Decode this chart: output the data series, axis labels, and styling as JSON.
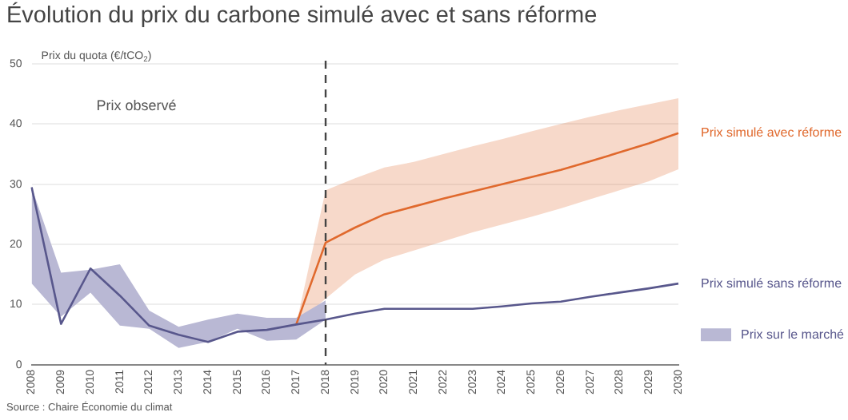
{
  "chart_data": {
    "type": "line",
    "title": "Évolution du prix du carbone simulé avec et sans réforme",
    "ylabel": "Prix du quota (€/tCO$_{2}$)",
    "categories": [
      "2008",
      "2009",
      "2010",
      "2011",
      "2012",
      "2013",
      "2014",
      "2015",
      "2016",
      "2017",
      "2018",
      "2019",
      "2020",
      "2021",
      "2022",
      "2023",
      "2024",
      "2025",
      "2026",
      "2027",
      "2028",
      "2029",
      "2030"
    ],
    "series": [
      {
        "type": "area",
        "name": "Prix sur le marché",
        "color": "#b9b8d4",
        "values": [
          null,
          null,
          null,
          null,
          null,
          null,
          null,
          null,
          null,
          null,
          null,
          null,
          null,
          null,
          null,
          null,
          null,
          null,
          null,
          null,
          null,
          null,
          null
        ],
        "lower": [
          13.5,
          8,
          12,
          6.5,
          6,
          2.8,
          3.8,
          6,
          4,
          4.2,
          7.5,
          null,
          null,
          null,
          null,
          null,
          null,
          null,
          null,
          null,
          null,
          null,
          null
        ],
        "upper": [
          29.5,
          15.3,
          15.8,
          16.7,
          9,
          6.3,
          7.5,
          8.5,
          7.8,
          7.8,
          10.7,
          null,
          null,
          null,
          null,
          null,
          null,
          null,
          null,
          null,
          null,
          null,
          null
        ]
      },
      {
        "name": "Prix simulé sans réforme",
        "color": "#58578c",
        "values": [
          29.5,
          6.8,
          16,
          11.5,
          6.5,
          5,
          3.8,
          5.5,
          5.8,
          6.7,
          7.5,
          8.5,
          9.3,
          9.3,
          9.3,
          9.3,
          9.7,
          10.2,
          10.5,
          11.3,
          12,
          12.7,
          13.5
        ]
      },
      {
        "name": "Prix simulé avec réforme",
        "color": "#e0692d",
        "values": [
          null,
          null,
          null,
          null,
          null,
          null,
          null,
          null,
          null,
          6.7,
          20.3,
          22.8,
          25,
          26.3,
          27.6,
          28.8,
          30,
          31.2,
          32.4,
          33.8,
          35.3,
          36.8,
          38.5
        ],
        "lower": [
          null,
          null,
          null,
          null,
          null,
          null,
          null,
          null,
          null,
          6.7,
          11,
          15,
          17.5,
          19,
          20.5,
          22,
          23.3,
          24.6,
          26,
          27.5,
          29,
          30.5,
          32.5
        ],
        "upper": [
          null,
          null,
          null,
          null,
          null,
          null,
          null,
          null,
          null,
          6.7,
          29,
          31,
          32.8,
          33.7,
          35,
          36.3,
          37.5,
          38.8,
          40,
          41.2,
          42.3,
          43.3,
          44.3
        ]
      }
    ],
    "ylim": [
      0,
      50
    ],
    "yticks": [
      0,
      10,
      20,
      30,
      40,
      50
    ],
    "grid": "y",
    "legend": "right",
    "marker": "none",
    "line_style": "solid",
    "ref_lines": [
      {
        "axis": "x",
        "value": "2018",
        "line_style": "dashed",
        "color": "#444444"
      }
    ],
    "annotations": [
      "Prix observé",
      "Source : Chaire Économie du climat"
    ]
  }
}
